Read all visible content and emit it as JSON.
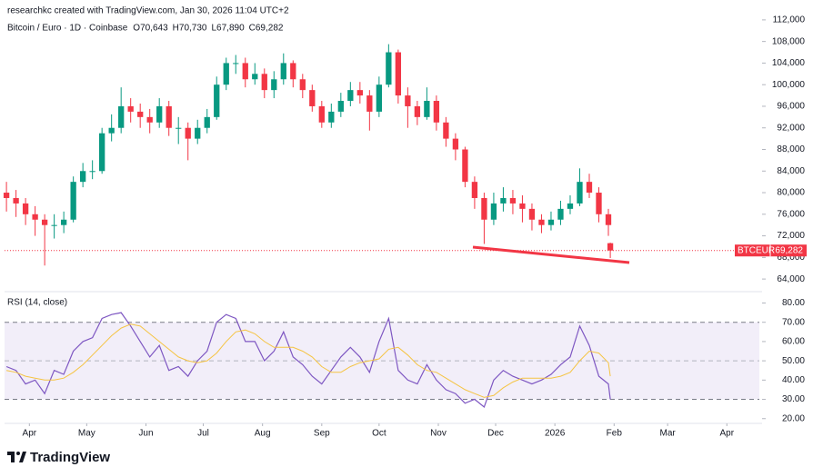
{
  "attribution": "researchkc created with TradingView.com, Jan 30, 2026 11:04 UTC+2",
  "logo": "TradingView",
  "chart_data": [
    {
      "type": "candlestick",
      "title": "Bitcoin / Euro · 1D · Coinbase",
      "ohlc_legend": [
        {
          "key": "O",
          "value": "70,643"
        },
        {
          "key": "H",
          "value": "70,730"
        },
        {
          "key": "L",
          "value": "67,890"
        },
        {
          "key": "C",
          "value": "69,282"
        }
      ],
      "symbol": "BTCEUR",
      "price_label": "69,282",
      "up_color": "#089981",
      "down_color": "#f23645",
      "x": [
        0,
        5,
        10,
        15,
        20,
        25,
        30,
        35,
        40,
        45,
        50,
        55,
        60,
        65,
        70,
        75,
        80,
        85,
        90,
        95,
        100,
        105,
        110,
        115,
        120,
        125,
        130,
        135,
        140,
        145,
        150,
        155,
        160,
        165,
        170,
        175,
        180,
        185,
        190,
        195,
        200,
        205,
        210,
        215,
        220,
        225,
        230,
        235,
        240,
        245,
        250,
        255,
        260,
        265,
        270,
        275,
        280,
        285,
        290,
        295,
        300,
        305,
        310,
        315,
        316
      ],
      "open": [
        80000,
        79000,
        78000,
        76000,
        75000,
        74000,
        74000,
        75000,
        82000,
        84000,
        84000,
        91000,
        92000,
        96000,
        95000,
        94000,
        93000,
        96000,
        92000,
        92000,
        90000,
        92000,
        94000,
        100000,
        104000,
        104000,
        101000,
        102000,
        99000,
        101000,
        104000,
        101000,
        99000,
        96000,
        93000,
        95000,
        97000,
        99000,
        98000,
        95000,
        100000,
        106000,
        98000,
        96000,
        94000,
        97000,
        93000,
        90000,
        88000,
        82000,
        79000,
        75000,
        78000,
        79000,
        78000,
        77000,
        75000,
        74000,
        75000,
        77000,
        78000,
        82000,
        80000,
        76000,
        70643
      ],
      "high": [
        82000,
        80500,
        79000,
        77500,
        76000,
        76000,
        76500,
        83000,
        85500,
        86000,
        92000,
        94500,
        99500,
        97500,
        96500,
        95500,
        97500,
        97000,
        94000,
        93000,
        93500,
        95500,
        101500,
        105000,
        105500,
        105000,
        104000,
        103000,
        102500,
        105800,
        104500,
        102000,
        100000,
        97000,
        96500,
        98500,
        100500,
        100500,
        99000,
        101500,
        107500,
        106500,
        99500,
        97000,
        99500,
        98000,
        94000,
        91000,
        88500,
        83000,
        80000,
        80000,
        81000,
        80500,
        79500,
        78000,
        76000,
        76500,
        78500,
        79500,
        84500,
        83500,
        81000,
        77000,
        70730
      ],
      "low": [
        76500,
        75500,
        74000,
        72000,
        66500,
        71500,
        72500,
        74500,
        81000,
        82500,
        83500,
        89500,
        91000,
        93000,
        92000,
        91000,
        92000,
        90500,
        89000,
        86000,
        89000,
        91000,
        93500,
        99000,
        102000,
        99500,
        100000,
        97500,
        97500,
        100000,
        99500,
        97500,
        95000,
        92000,
        92000,
        94000,
        96000,
        96500,
        91500,
        94000,
        99500,
        96500,
        92000,
        92500,
        93500,
        91500,
        88500,
        86000,
        81000,
        77000,
        70500,
        74000,
        76500,
        76000,
        74500,
        73000,
        72500,
        73000,
        74000,
        76000,
        77500,
        79000,
        74500,
        72000,
        67890
      ],
      "close": [
        79000,
        78000,
        76000,
        75000,
        74000,
        74000,
        75000,
        82000,
        84000,
        84000,
        91000,
        92000,
        96000,
        95000,
        94000,
        93000,
        96000,
        92000,
        92000,
        90000,
        92000,
        94000,
        100000,
        104000,
        104000,
        101000,
        102000,
        99000,
        101000,
        104000,
        101000,
        99000,
        96000,
        93000,
        95000,
        97000,
        99000,
        98000,
        95000,
        100000,
        106000,
        98000,
        96000,
        94000,
        97000,
        93000,
        90000,
        88000,
        82000,
        79000,
        75000,
        78000,
        79000,
        78000,
        77000,
        75000,
        74000,
        75000,
        77000,
        78000,
        82000,
        80000,
        76000,
        74000,
        69282
      ],
      "xlim": [
        -1,
        394
      ],
      "ylim": [
        62000,
        114000
      ],
      "yticks": [
        {
          "value": 64000,
          "label": "64,000"
        },
        {
          "value": 68000,
          "label": "68,000"
        },
        {
          "value": 72000,
          "label": "72,000"
        },
        {
          "value": 76000,
          "label": "76,000"
        },
        {
          "value": 80000,
          "label": "80,000"
        },
        {
          "value": 84000,
          "label": "84,000"
        },
        {
          "value": 88000,
          "label": "88,000"
        },
        {
          "value": 92000,
          "label": "92,000"
        },
        {
          "value": 96000,
          "label": "96,000"
        },
        {
          "value": 100000,
          "label": "100,000"
        },
        {
          "value": 104000,
          "label": "104,000"
        },
        {
          "value": 108000,
          "label": "108,000"
        },
        {
          "value": 112000,
          "label": "112,000"
        }
      ]
    },
    {
      "type": "line",
      "title": "RSI (14, close)",
      "x": [
        0,
        5,
        10,
        15,
        20,
        25,
        30,
        35,
        40,
        45,
        50,
        55,
        60,
        65,
        70,
        75,
        80,
        85,
        90,
        95,
        100,
        105,
        110,
        115,
        120,
        125,
        130,
        135,
        140,
        145,
        150,
        155,
        160,
        165,
        170,
        175,
        180,
        185,
        190,
        195,
        200,
        205,
        210,
        215,
        220,
        225,
        230,
        235,
        240,
        245,
        250,
        255,
        260,
        265,
        270,
        275,
        280,
        285,
        290,
        295,
        300,
        305,
        310,
        315,
        316
      ],
      "series": [
        {
          "color": "#7e57c2",
          "values": [
            47,
            45,
            38,
            40,
            33,
            45,
            43,
            55,
            60,
            62,
            72,
            74,
            75,
            68,
            60,
            52,
            58,
            45,
            47,
            42,
            50,
            55,
            70,
            74,
            72,
            60,
            60,
            50,
            55,
            65,
            52,
            48,
            42,
            38,
            45,
            52,
            57,
            52,
            44,
            60,
            72,
            45,
            40,
            38,
            48,
            40,
            35,
            33,
            28,
            30,
            26,
            40,
            45,
            42,
            40,
            38,
            40,
            43,
            48,
            52,
            68,
            58,
            42,
            38,
            30
          ]
        },
        {
          "color": "#f5c443",
          "values": [
            45,
            44,
            42,
            41,
            40,
            40,
            41,
            44,
            48,
            53,
            58,
            63,
            67,
            69,
            68,
            64,
            60,
            56,
            52,
            50,
            49,
            50,
            54,
            60,
            65,
            66,
            64,
            60,
            57,
            57,
            57,
            55,
            52,
            47,
            44,
            44,
            47,
            49,
            50,
            51,
            56,
            57,
            53,
            48,
            45,
            44,
            41,
            38,
            35,
            33,
            31,
            32,
            36,
            39,
            41,
            41,
            41,
            41,
            42,
            44,
            50,
            55,
            54,
            49,
            42
          ]
        }
      ],
      "band": [
        30,
        70
      ],
      "midline": 50,
      "band_color": "#7e57c2",
      "xlim": [
        -1,
        394
      ],
      "ylim": [
        18,
        84
      ],
      "yticks": [
        {
          "value": 20,
          "label": "20.00"
        },
        {
          "value": 30,
          "label": "30.00"
        },
        {
          "value": 40,
          "label": "40.00"
        },
        {
          "value": 50,
          "label": "50.00"
        },
        {
          "value": 60,
          "label": "60.00"
        },
        {
          "value": 70,
          "label": "70.00"
        },
        {
          "value": 80,
          "label": "80.00"
        }
      ],
      "xticks": [
        {
          "value": 12,
          "label": "Apr"
        },
        {
          "value": 42,
          "label": "May"
        },
        {
          "value": 73,
          "label": "Jun"
        },
        {
          "value": 103,
          "label": "Jul"
        },
        {
          "value": 134,
          "label": "Aug"
        },
        {
          "value": 165,
          "label": "Sep"
        },
        {
          "value": 195,
          "label": "Oct"
        },
        {
          "value": 226,
          "label": "Nov"
        },
        {
          "value": 256,
          "label": "Dec"
        },
        {
          "value": 287,
          "label": "2026"
        },
        {
          "value": 318,
          "label": "Feb"
        },
        {
          "value": 346,
          "label": "Mar"
        },
        {
          "value": 377,
          "label": "Apr"
        }
      ]
    }
  ]
}
